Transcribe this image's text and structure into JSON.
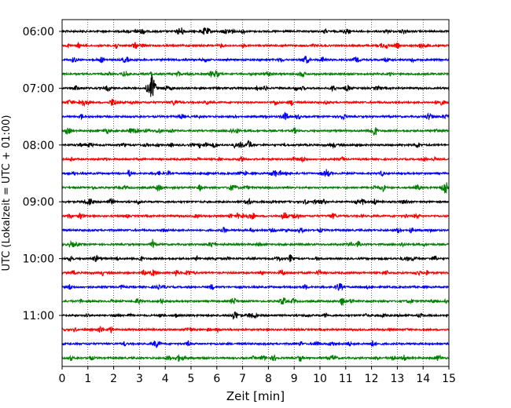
{
  "chart_data": {
    "type": "line",
    "title": "",
    "xlabel": "Zeit  [min]",
    "ylabel": "UTC (Lokalzeit = UTC + 01:00)",
    "xlim": [
      0,
      15
    ],
    "x_ticks": [
      "0",
      "1",
      "2",
      "3",
      "4",
      "5",
      "6",
      "7",
      "8",
      "9",
      "10",
      "11",
      "12",
      "13",
      "14",
      "15"
    ],
    "y_ticks": [
      "06:00",
      "07:00",
      "08:00",
      "09:00",
      "10:00",
      "11:00"
    ],
    "grid": "vertical dotted",
    "trace_count": 24,
    "trace_interval_minutes": 15,
    "start_time": "06:00",
    "trace_colors": [
      "#000000",
      "#ff0000",
      "#0000ff",
      "#008000"
    ],
    "events": [
      {
        "trace": 4,
        "minute": 3.5,
        "amplitude": 16
      },
      {
        "trace": 8,
        "minute": 7.25,
        "amplitude": 5
      },
      {
        "trace": 11,
        "minute": 14.85,
        "amplitude": 7
      },
      {
        "trace": 2,
        "minute": 11.4,
        "amplitude": 3
      },
      {
        "trace": 13,
        "minute": 10.5,
        "amplitude": 3
      },
      {
        "trace": 23,
        "minute": 14.6,
        "amplitude": 3
      }
    ]
  }
}
